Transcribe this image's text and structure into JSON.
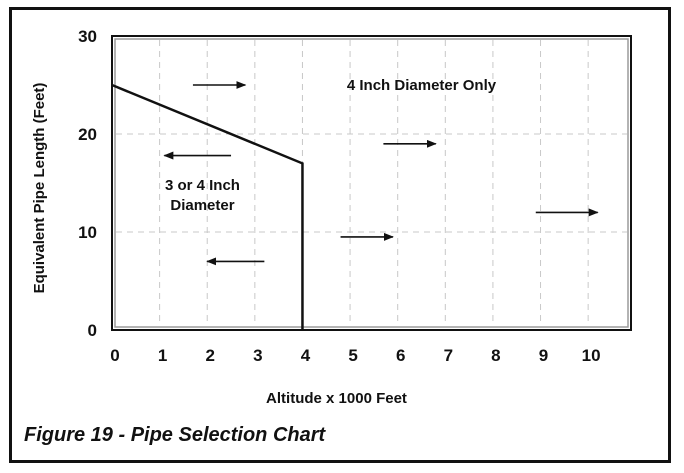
{
  "caption": "Figure 19 - Pipe Selection Chart",
  "chart_data": {
    "type": "line",
    "title": "",
    "xlabel": "Altitude x 1000 Feet",
    "ylabel": "Equivalent Pipe Length (Feet)",
    "xlim": [
      0,
      10.9
    ],
    "ylim": [
      0,
      30
    ],
    "x_ticks": [
      "0",
      "1",
      "2",
      "3",
      "4",
      "5",
      "6",
      "7",
      "8",
      "9",
      "10"
    ],
    "y_ticks": [
      "0",
      "10",
      "20",
      "30"
    ],
    "grid": true,
    "grid_style": "dashed",
    "series": [
      {
        "x": [
          0,
          4,
          4
        ],
        "y": [
          25,
          17,
          0
        ]
      }
    ],
    "regions": [
      {
        "label": "4 Inch Diameter Only",
        "x": 6.5,
        "y": 25
      },
      {
        "label_lines": [
          "3 or 4 Inch",
          "Diameter"
        ],
        "x": 1.9,
        "y": 14.3
      }
    ],
    "arrows": [
      {
        "x1": 1.7,
        "y1": 25,
        "x2": 2.8,
        "y2": 25
      },
      {
        "x1": 2.5,
        "y1": 17.8,
        "x2": 1.1,
        "y2": 17.8
      },
      {
        "x1": 5.7,
        "y1": 19,
        "x2": 6.8,
        "y2": 19
      },
      {
        "x1": 4.8,
        "y1": 9.5,
        "x2": 5.9,
        "y2": 9.5
      },
      {
        "x1": 3.2,
        "y1": 7,
        "x2": 2.0,
        "y2": 7
      },
      {
        "x1": 8.9,
        "y1": 12,
        "x2": 10.2,
        "y2": 12
      }
    ],
    "colors": {
      "line": "#111111",
      "grid": "#c8c8c8",
      "frame": "#111111",
      "frame_inner": "#9a9a9a"
    }
  }
}
